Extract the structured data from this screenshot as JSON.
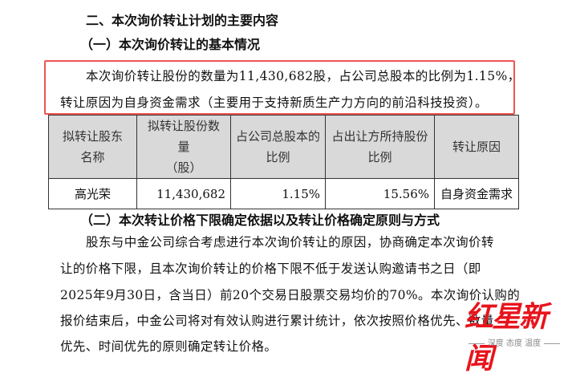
{
  "section_heading": "二、本次询价转让计划的主要内容",
  "sub1_heading": "（一）本次询价转让的基本情况",
  "highlight": {
    "line1": "本次询价转让股份的数量为11,430,682股，占公司总股本的比例为1.15%，",
    "line2": "转让原因为自身资金需求（主要用于支持新质生产力方向的前沿科技投资）。",
    "border_color": "#f05454"
  },
  "table": {
    "headers": [
      [
        "拟转让股东",
        "名称"
      ],
      [
        "拟转让股份数量",
        "（股）"
      ],
      [
        "占公司总股本的",
        "比例"
      ],
      [
        "占出让方所持股份",
        "比例"
      ],
      [
        "转让原因",
        ""
      ]
    ],
    "rows": [
      [
        "高光荣",
        "11,430,682",
        "1.15%",
        "15.56%",
        "自身资金需求"
      ]
    ]
  },
  "sub2_heading": "（二）本次转让价格下限确定依据以及转让价格确定原则与方式",
  "paragraph": [
    "股东与中金公司综合考虑进行本次询价转让的原因，协商确定本次询价转",
    "让的价格下限，且本次询价转让的价格下限不低于发送认购邀请书之日（即",
    "2025年9月30日，含当日）前20个交易日股票交易均价的70%。本次询价认购的",
    "报价结束后，中金公司将对有效认购进行累计统计，依次按照价格优先、数量",
    "优先、时间优先的原则确定转让价格。"
  ],
  "watermark": {
    "logo": "红星新闻",
    "tagline": "深度 态度 温度",
    "color": "#e8141c"
  }
}
